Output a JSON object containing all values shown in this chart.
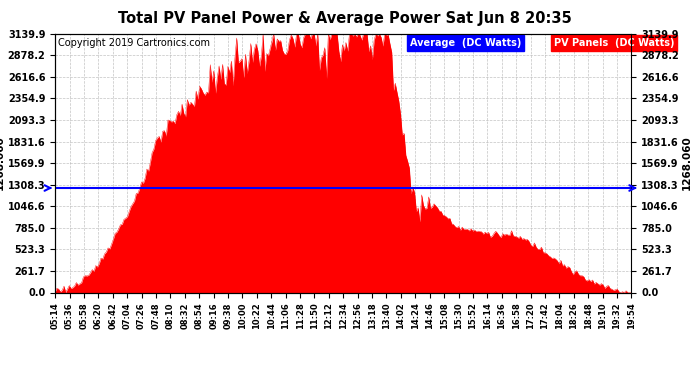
{
  "title": "Total PV Panel Power & Average Power Sat Jun 8 20:35",
  "copyright": "Copyright 2019 Cartronics.com",
  "legend_labels": [
    "Average  (DC Watts)",
    "PV Panels  (DC Watts)"
  ],
  "average_value": 1268.06,
  "ymax": 3139.9,
  "ymin": 0.0,
  "yticks": [
    0.0,
    261.7,
    523.3,
    785.0,
    1046.6,
    1308.3,
    1569.9,
    1831.6,
    2093.3,
    2354.9,
    2616.6,
    2878.2,
    3139.9
  ],
  "background_color": "#ffffff",
  "grid_color": "#aaaaaa",
  "x_times": [
    "05:14",
    "05:36",
    "05:58",
    "06:20",
    "06:42",
    "07:04",
    "07:26",
    "07:48",
    "08:10",
    "08:32",
    "08:54",
    "09:16",
    "09:38",
    "10:00",
    "10:22",
    "10:44",
    "11:06",
    "11:28",
    "11:50",
    "12:12",
    "12:34",
    "12:56",
    "13:18",
    "13:40",
    "14:02",
    "14:24",
    "14:46",
    "15:08",
    "15:30",
    "15:52",
    "16:14",
    "16:36",
    "16:58",
    "17:20",
    "17:42",
    "18:04",
    "18:26",
    "18:48",
    "19:10",
    "19:32",
    "19:54"
  ],
  "pv_values": [
    30,
    60,
    150,
    350,
    650,
    950,
    1300,
    1750,
    2050,
    2250,
    2400,
    2550,
    2700,
    2820,
    2900,
    2950,
    3020,
    3060,
    3100,
    2980,
    3050,
    3120,
    3080,
    3100,
    2200,
    1150,
    1050,
    950,
    800,
    750,
    720,
    700,
    680,
    600,
    500,
    380,
    250,
    150,
    80,
    30,
    5
  ]
}
